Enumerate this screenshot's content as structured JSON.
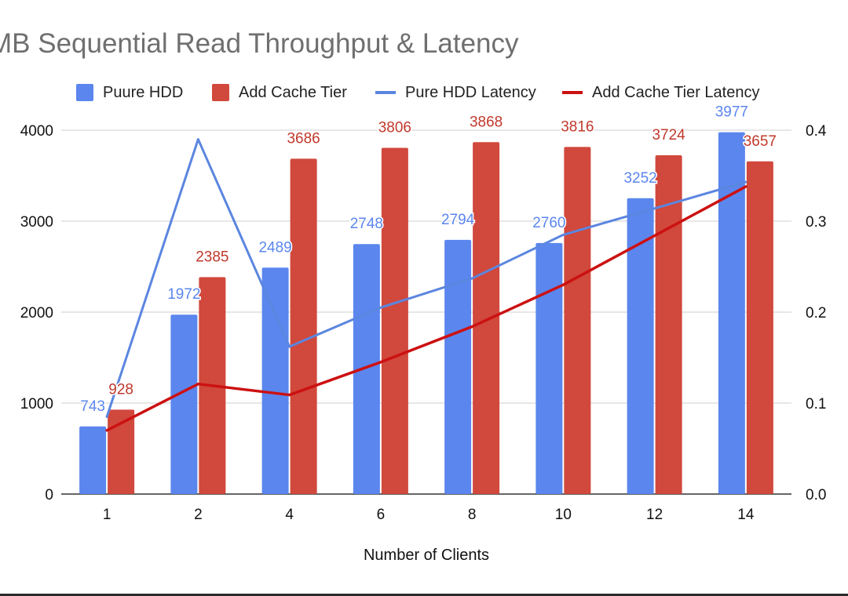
{
  "chart_data": {
    "type": "bar",
    "title": "MB Sequential Read Throughput & Latency",
    "xlabel": "Number of Clients",
    "ylabel": "",
    "categories": [
      "1",
      "2",
      "4",
      "6",
      "8",
      "10",
      "12",
      "14"
    ],
    "ylim": [
      0,
      4000
    ],
    "y_ticks": [
      "0",
      "1000",
      "2000",
      "3000",
      "4000"
    ],
    "y2lim": [
      0.0,
      0.4
    ],
    "y2_ticks": [
      "0.0",
      "0.1",
      "0.2",
      "0.3",
      "0.4"
    ],
    "grid": true,
    "legend_position": "top",
    "series": [
      {
        "name": "Puure HDD",
        "kind": "bar",
        "axis": "left",
        "color": "#5b86ee",
        "values": [
          743,
          1972,
          2489,
          2748,
          2794,
          2760,
          3252,
          3977
        ],
        "labels": [
          "743",
          "1972",
          "2489",
          "2748",
          "2794",
          "2760",
          "3252",
          "3977"
        ]
      },
      {
        "name": "Add Cache Tier",
        "kind": "bar",
        "axis": "left",
        "color": "#d1483c",
        "values": [
          928,
          2385,
          3686,
          3806,
          3868,
          3816,
          3724,
          3657
        ],
        "labels": [
          "928",
          "2385",
          "3686",
          "3806",
          "3868",
          "3816",
          "3724",
          "3657"
        ]
      },
      {
        "name": "Pure HDD Latency",
        "kind": "line",
        "axis": "right",
        "color": "#5b86e0",
        "values": [
          0.085,
          0.39,
          0.162,
          0.205,
          0.237,
          0.285,
          0.314,
          0.343
        ]
      },
      {
        "name": "Add Cache Tier  Latency",
        "kind": "line",
        "axis": "right",
        "color": "#cc1111",
        "values": [
          0.07,
          0.121,
          0.109,
          0.145,
          0.184,
          0.23,
          0.284,
          0.338
        ]
      }
    ]
  }
}
